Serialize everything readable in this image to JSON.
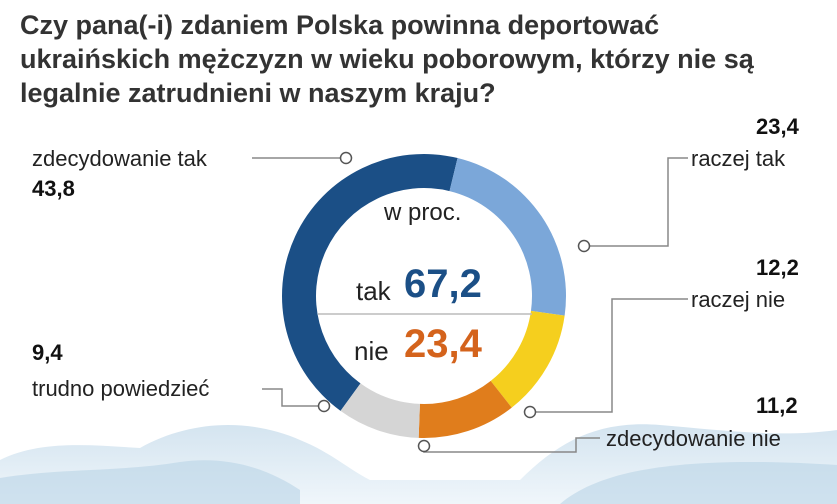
{
  "title_lines": [
    "Czy pana(-i) zdaniem Polska powinna deportować",
    "ukraińskich mężczyzn w wieku poborowym, którzy nie są",
    "legalnie zatrudnieni w naszym kraju?"
  ],
  "center": {
    "unit": "w proc.",
    "yes_label": "tak",
    "yes_value": "67,2",
    "no_label": "nie",
    "no_value": "23,4"
  },
  "colors": {
    "yes_accent": "#1b4f86",
    "no_accent": "#d4631c",
    "ring_background": "#ffffff"
  },
  "chart_data": {
    "type": "pie",
    "title": "Czy pana(-i) zdaniem Polska powinna deportować ukraińskich mężczyzn w wieku poborowym, którzy nie są legalnie zatrudnieni w naszym kraju?",
    "unit": "w proc.",
    "donut": true,
    "slices": [
      {
        "label": "zdecydowanie tak",
        "value": 43.8,
        "display": "43,8",
        "color": "#1b4f86"
      },
      {
        "label": "raczej tak",
        "value": 23.4,
        "display": "23,4",
        "color": "#7ba7d9"
      },
      {
        "label": "raczej nie",
        "value": 12.2,
        "display": "12,2",
        "color": "#f5cf1e"
      },
      {
        "label": "zdecydowanie nie",
        "value": 11.2,
        "display": "11,2",
        "color": "#e07d1c"
      },
      {
        "label": "trudno powiedzieć",
        "value": 9.4,
        "display": "9,4",
        "color": "#d5d5d5"
      }
    ],
    "totals": {
      "tak": 67.2,
      "nie": 23.4
    }
  }
}
